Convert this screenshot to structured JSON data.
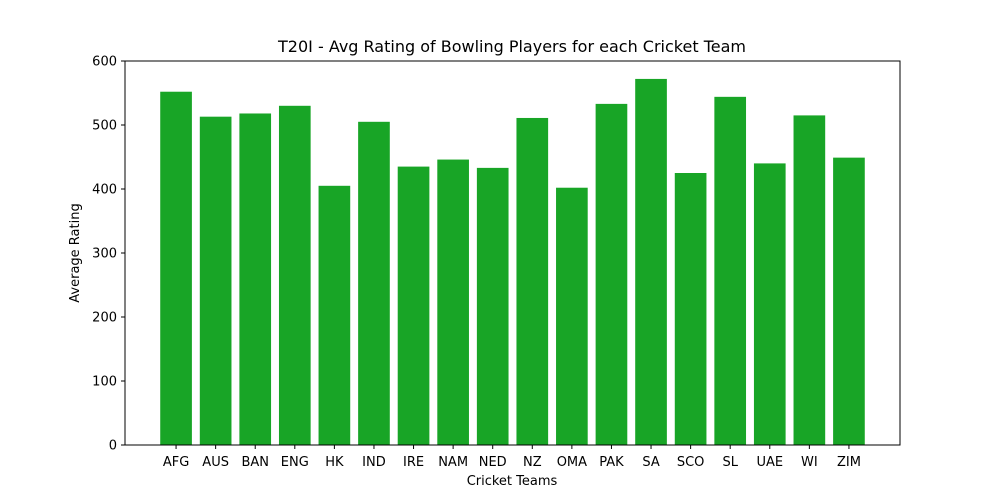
{
  "chart_data": {
    "type": "bar",
    "title": "T20I - Avg Rating of Bowling Players for each Cricket Team",
    "xlabel": "Cricket Teams",
    "ylabel": "Average Rating",
    "categories": [
      "AFG",
      "AUS",
      "BAN",
      "ENG",
      "HK",
      "IND",
      "IRE",
      "NAM",
      "NED",
      "NZ",
      "OMA",
      "PAK",
      "SA",
      "SCO",
      "SL",
      "UAE",
      "WI",
      "ZIM"
    ],
    "values": [
      552,
      513,
      518,
      530,
      405,
      505,
      435,
      446,
      433,
      511,
      402,
      533,
      572,
      425,
      544,
      440,
      515,
      449
    ],
    "ylim": [
      0,
      600
    ],
    "yticks": [
      0,
      100,
      200,
      300,
      400,
      500,
      600
    ],
    "bar_color": "#18a526",
    "grid": false,
    "legend": "none"
  }
}
